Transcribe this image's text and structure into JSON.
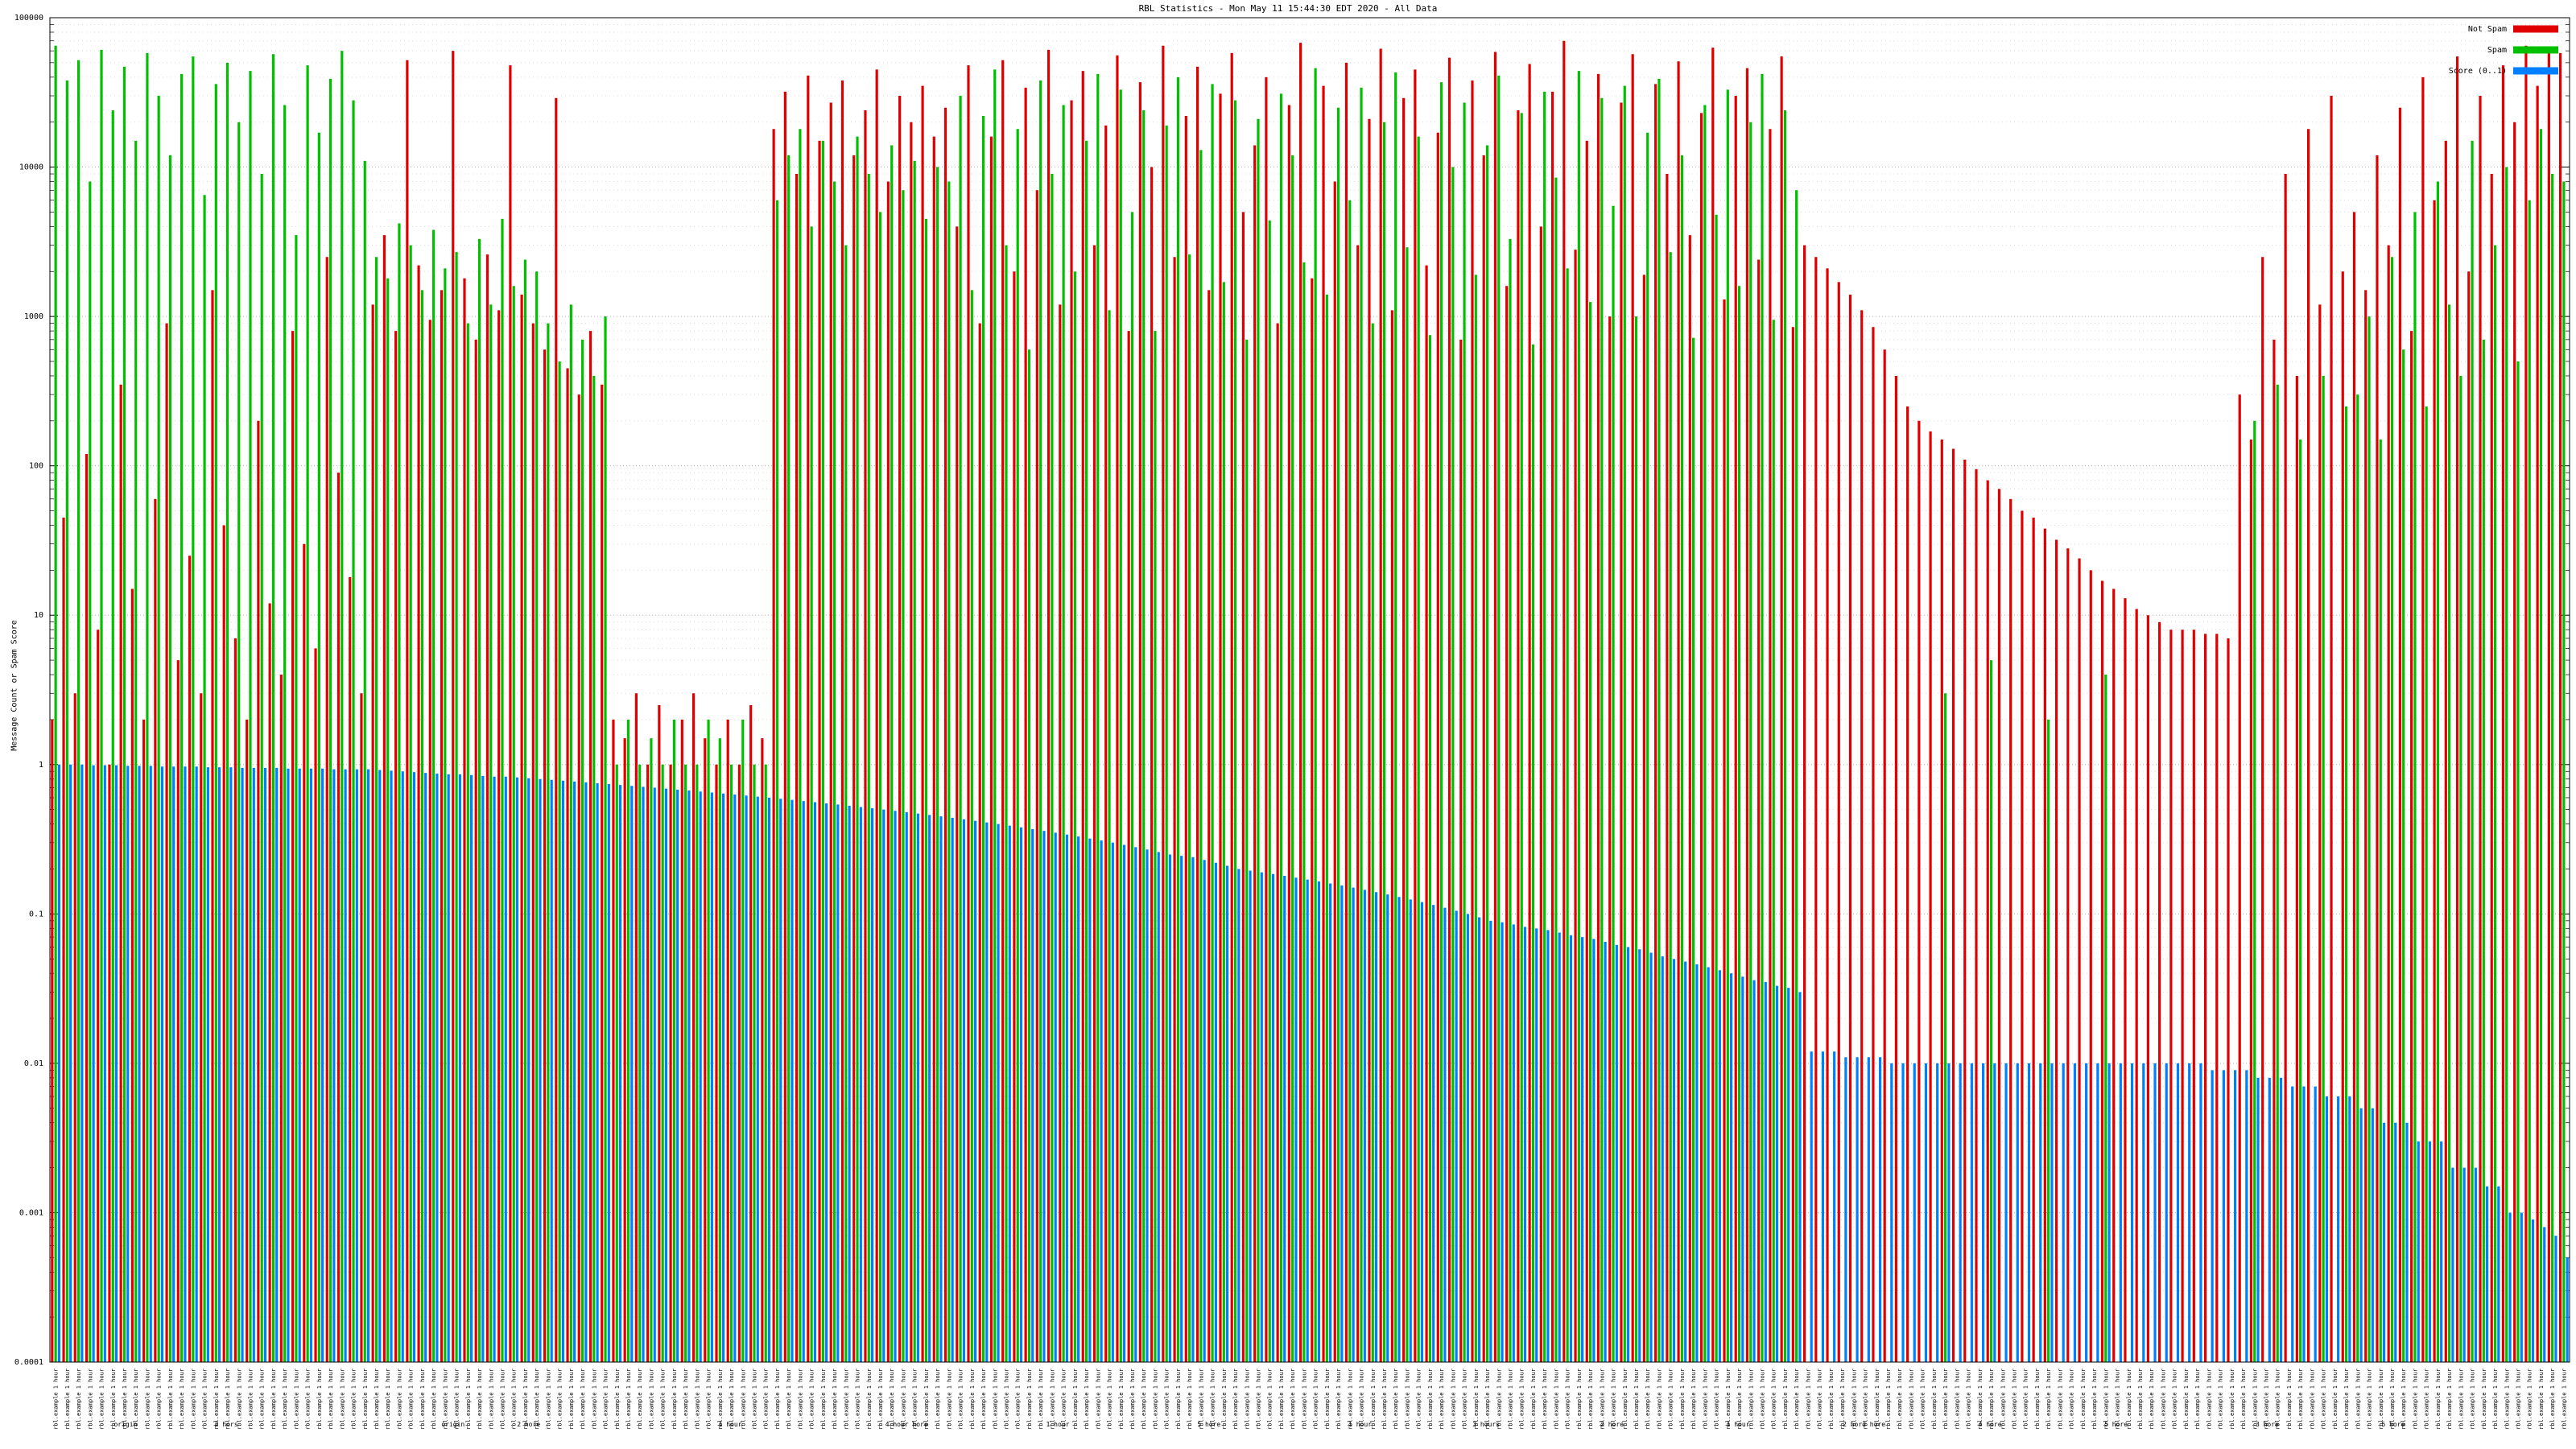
{
  "title": "RBL Statistics - Mon May 11 15:44:30 EDT 2020 - All Data",
  "ylabel": "Message Count or Spam Score",
  "legend": [
    {
      "label": "Not Spam",
      "color": "#e00000"
    },
    {
      "label": "Spam",
      "color": "#00c000"
    },
    {
      "label": "Score (0..1)",
      "color": "#0080ff"
    }
  ],
  "chart_data": {
    "type": "bar",
    "scale": "log",
    "ylim": [
      0.0001,
      100000
    ],
    "grid": true,
    "legend_position": "top-right",
    "y_ticks": [
      "100000",
      "10000",
      "1000",
      "100",
      "10",
      "1",
      "0.1",
      "0.01",
      "0.001",
      "0.0001"
    ],
    "x_tick_label_placeholder": "rbl.example 1 hour",
    "x_sublabels": [
      {
        "text": "origin",
        "x": 0.03
      },
      {
        "text": "2 hors",
        "x": 0.07
      },
      {
        "text": "origin",
        "x": 0.16
      },
      {
        "text": "2 hore",
        "x": 0.19
      },
      {
        "text": "1 hour",
        "x": 0.27
      },
      {
        "text": "4 hour hore",
        "x": 0.34
      },
      {
        "text": "1 hour",
        "x": 0.4
      },
      {
        "text": "5 hore",
        "x": 0.46
      },
      {
        "text": "1 hour",
        "x": 0.52
      },
      {
        "text": "3 hours",
        "x": 0.57
      },
      {
        "text": "2 hore",
        "x": 0.62
      },
      {
        "text": "1 hour",
        "x": 0.67
      },
      {
        "text": "2 hord hore",
        "x": 0.72
      },
      {
        "text": "4 hore",
        "x": 0.77
      },
      {
        "text": "5 hore",
        "x": 0.82
      },
      {
        "text": "3 hore",
        "x": 0.88
      },
      {
        "text": "5 hore",
        "x": 0.93
      }
    ],
    "series": [
      {
        "name": "Not Spam",
        "color": "#e00000",
        "values": [
          2,
          45,
          3,
          120,
          8,
          1,
          350,
          15,
          2,
          60,
          900,
          5,
          25,
          3,
          1500,
          40,
          7,
          2,
          200,
          12,
          4,
          800,
          30,
          6,
          2500,
          90,
          18,
          3,
          1200,
          3500,
          800,
          52000,
          2200,
          950,
          1500,
          60000,
          1800,
          700,
          2600,
          1100,
          48000,
          1400,
          900,
          600,
          29000,
          450,
          300,
          800,
          350,
          2,
          1.5,
          3,
          1,
          2.5,
          1,
          2,
          3,
          1.5,
          1,
          2,
          1,
          2.5,
          1.5,
          18000,
          32000,
          9000,
          41000,
          15000,
          27000,
          38000,
          12000,
          24000,
          45000,
          8000,
          30000,
          20000,
          35000,
          16000,
          25000,
          4000,
          48000,
          900,
          16000,
          52000,
          2000,
          34000,
          7000,
          61000,
          1200,
          28000,
          44000,
          3000,
          19000,
          56000,
          800,
          37000,
          10000,
          65000,
          2500,
          22000,
          47000,
          1500,
          31000,
          58000,
          5000,
          14000,
          40000,
          900,
          26000,
          68000,
          1800,
          35000,
          8000,
          50000,
          3000,
          21000,
          62000,
          1100,
          29000,
          45000,
          2200,
          17000,
          54000,
          700,
          38000,
          12000,
          59000,
          1600,
          24000,
          49000,
          4000,
          32000,
          70000,
          2800,
          15000,
          42000,
          1000,
          27000,
          57000,
          1900,
          36000,
          9000,
          51000,
          3500,
          23000,
          63000,
          1300,
          30000,
          46000,
          2400,
          18000,
          55000,
          850,
          3000,
          2500,
          2100,
          1700,
          1400,
          1100,
          850,
          600,
          400,
          250,
          200,
          170,
          150,
          130,
          110,
          95,
          80,
          70,
          60,
          50,
          45,
          38,
          32,
          28,
          24,
          20,
          17,
          15,
          13,
          11,
          10,
          9,
          8,
          8,
          8,
          7.5,
          7.5,
          7,
          300,
          150,
          2500,
          700,
          9000,
          400,
          18000,
          1200,
          30000,
          2000,
          5000,
          1500,
          12000,
          3000,
          25000,
          800,
          40000,
          6000,
          15000,
          55000,
          2000,
          30000,
          9000,
          48000,
          20000,
          65000,
          35000,
          60000,
          58000
        ]
      },
      {
        "name": "Spam",
        "color": "#00c000",
        "values": [
          65000,
          38000,
          52000,
          8000,
          61000,
          24000,
          47000,
          15000,
          58000,
          30000,
          12000,
          42000,
          55000,
          6500,
          36000,
          50000,
          20000,
          44000,
          9000,
          57000,
          26000,
          3500,
          48000,
          17000,
          39000,
          60000,
          28000,
          11000,
          2500,
          1800,
          4200,
          3000,
          1500,
          3800,
          2100,
          2700,
          900,
          3300,
          1200,
          4500,
          1600,
          2400,
          2000,
          900,
          500,
          1200,
          700,
          400,
          1000,
          1,
          2,
          1,
          1.5,
          1,
          2,
          1,
          1,
          2,
          1.5,
          1,
          2,
          1,
          1,
          6000,
          12000,
          18000,
          4000,
          15000,
          8000,
          3000,
          16000,
          9000,
          5000,
          14000,
          7000,
          11000,
          4500,
          10000,
          8000,
          30000,
          1500,
          22000,
          45000,
          3000,
          18000,
          600,
          38000,
          9000,
          26000,
          2000,
          15000,
          42000,
          1100,
          33000,
          5000,
          24000,
          800,
          19000,
          40000,
          2600,
          13000,
          36000,
          1700,
          28000,
          700,
          21000,
          4400,
          31000,
          12000,
          2300,
          46000,
          1400,
          25000,
          6000,
          34000,
          900,
          20000,
          43000,
          2900,
          16000,
          750,
          37000,
          10000,
          27000,
          1900,
          14000,
          41000,
          3300,
          23000,
          650,
          32000,
          8500,
          2100,
          44000,
          1250,
          29000,
          5500,
          35000,
          1000,
          17000,
          39000,
          2700,
          12000,
          720,
          26000,
          4800,
          33000,
          1600,
          20000,
          42000,
          950,
          24000,
          7000,
          0,
          0,
          0,
          0,
          0,
          0,
          0,
          0,
          0,
          0,
          0,
          0,
          3,
          0,
          0,
          0,
          5,
          0,
          0,
          0,
          0,
          2,
          0,
          0,
          0,
          0,
          4,
          0,
          0,
          0,
          0,
          0,
          0,
          0,
          0,
          0,
          0,
          0,
          0,
          200,
          0,
          350,
          0,
          150,
          0,
          400,
          0,
          250,
          300,
          1000,
          150,
          2500,
          600,
          5000,
          250,
          8000,
          1200,
          400,
          15000,
          700,
          3000,
          10000,
          500,
          6000,
          18000,
          9000,
          8000
        ]
      },
      {
        "name": "Score (0..1)",
        "color": "#0080ff",
        "values": [
          1,
          1,
          1,
          0.99,
          0.99,
          0.99,
          0.98,
          0.98,
          0.98,
          0.97,
          0.97,
          0.97,
          0.97,
          0.96,
          0.96,
          0.96,
          0.95,
          0.95,
          0.95,
          0.95,
          0.94,
          0.94,
          0.94,
          0.94,
          0.93,
          0.93,
          0.93,
          0.93,
          0.92,
          0.91,
          0.9,
          0.89,
          0.88,
          0.87,
          0.86,
          0.86,
          0.85,
          0.84,
          0.83,
          0.83,
          0.82,
          0.81,
          0.8,
          0.79,
          0.78,
          0.77,
          0.76,
          0.75,
          0.74,
          0.73,
          0.72,
          0.71,
          0.7,
          0.69,
          0.68,
          0.67,
          0.66,
          0.65,
          0.64,
          0.63,
          0.62,
          0.61,
          0.6,
          0.59,
          0.58,
          0.57,
          0.56,
          0.55,
          0.54,
          0.53,
          0.52,
          0.51,
          0.5,
          0.49,
          0.48,
          0.47,
          0.46,
          0.45,
          0.44,
          0.43,
          0.42,
          0.41,
          0.4,
          0.39,
          0.38,
          0.37,
          0.36,
          0.35,
          0.34,
          0.33,
          0.32,
          0.31,
          0.3,
          0.29,
          0.28,
          0.27,
          0.26,
          0.25,
          0.245,
          0.24,
          0.23,
          0.22,
          0.21,
          0.2,
          0.195,
          0.19,
          0.185,
          0.18,
          0.175,
          0.17,
          0.165,
          0.16,
          0.155,
          0.15,
          0.145,
          0.14,
          0.135,
          0.13,
          0.125,
          0.12,
          0.115,
          0.11,
          0.105,
          0.1,
          0.095,
          0.09,
          0.088,
          0.085,
          0.082,
          0.08,
          0.078,
          0.075,
          0.072,
          0.07,
          0.068,
          0.065,
          0.062,
          0.06,
          0.058,
          0.055,
          0.052,
          0.05,
          0.048,
          0.046,
          0.044,
          0.042,
          0.04,
          0.038,
          0.036,
          0.035,
          0.033,
          0.032,
          0.03,
          0.012,
          0.012,
          0.012,
          0.011,
          0.011,
          0.011,
          0.011,
          0.01,
          0.01,
          0.01,
          0.01,
          0.01,
          0.01,
          0.01,
          0.01,
          0.01,
          0.01,
          0.01,
          0.01,
          0.01,
          0.01,
          0.01,
          0.01,
          0.01,
          0.01,
          0.01,
          0.01,
          0.01,
          0.01,
          0.01,
          0.01,
          0.01,
          0.01,
          0.01,
          0.01,
          0.009,
          0.009,
          0.009,
          0.009,
          0.008,
          0.008,
          0.008,
          0.007,
          0.007,
          0.007,
          0.006,
          0.006,
          0.006,
          0.005,
          0.005,
          0.004,
          0.004,
          0.004,
          0.003,
          0.003,
          0.003,
          0.002,
          0.002,
          0.002,
          0.0015,
          0.0015,
          0.001,
          0.001,
          0.0009,
          0.0008,
          0.0007,
          0.0005
        ]
      }
    ]
  }
}
